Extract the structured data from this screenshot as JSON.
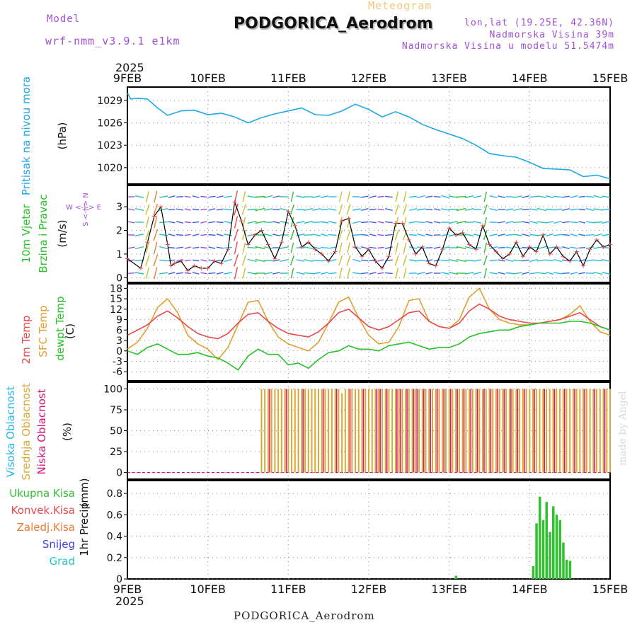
{
  "header": {
    "model_label": "Model",
    "model_name": "wrf-nmm_v3.9.1 e1km",
    "meteogram_label": "Meteogram",
    "station": "PODGORICA_Aerodrom",
    "coords": "lon,lat (19.25E, 42.36N)",
    "elevation": "Nadmorska Visina 39m",
    "model_elevation": "Nadmorska Visina u modelu 51.5474m",
    "year_top": "2025",
    "year_bottom": "2025",
    "footer_station": "PODGORICA_Aerodrom",
    "signature": "made by Angel"
  },
  "colors": {
    "pressure": "#1ea8e6",
    "temp2m": "#e84848",
    "sfc": "#e0a030",
    "dew": "#28c028",
    "high": "#28b8e8",
    "mid": "#d8a838",
    "low": "#d01878",
    "precip": "#30c030",
    "conv": "#e84848",
    "frz": "#f07830",
    "snow": "#4040e0",
    "grad": "#20c8c0",
    "purple": "#a050d8"
  },
  "chart_data": [
    {
      "type": "line",
      "id": "pressure",
      "ylabel": "Pritisak na nivou mora",
      "units": "(hPa)",
      "x_ticks": [
        "9FEB",
        "10FEB",
        "11FEB",
        "12FEB",
        "13FEB",
        "14FEB",
        "15FEB"
      ],
      "y_ticks": [
        1020,
        1023,
        1026,
        1029
      ],
      "ylim": [
        1017.8,
        1030.8
      ],
      "x_hours": [
        0,
        1,
        3,
        6,
        9,
        12,
        16,
        20,
        24,
        28,
        32,
        36,
        40,
        44,
        48,
        52,
        56,
        60,
        64,
        68,
        72,
        76,
        80,
        84,
        88,
        92,
        96,
        100,
        104,
        108,
        112,
        116,
        120,
        124,
        128,
        132,
        136,
        140,
        144
      ],
      "series": [
        {
          "values": [
            1030.0,
            1029.2,
            1029.3,
            1029.2,
            1028.0,
            1027.0,
            1027.6,
            1027.7,
            1027.1,
            1027.3,
            1026.8,
            1026.0,
            1026.7,
            1027.2,
            1027.6,
            1028.0,
            1027.1,
            1027.0,
            1027.6,
            1028.5,
            1027.8,
            1026.8,
            1027.5,
            1026.8,
            1025.8,
            1025.1,
            1024.5,
            1023.9,
            1023.0,
            1021.9,
            1021.6,
            1021.4,
            1020.7,
            1019.9,
            1019.8,
            1019.7,
            1018.8,
            1019.0,
            1018.5
          ]
        }
      ]
    },
    {
      "type": "line",
      "id": "wind",
      "ylabel": "10m Vjetar",
      "ylabel2": "Brzina i Pravac",
      "units": "(m/s)",
      "compass": "W <-|-> E",
      "compass2": "S <-|-> N",
      "y_ticks": [
        0,
        1,
        2,
        3
      ],
      "ylim": [
        -0.2,
        3.9
      ],
      "x_hours": [
        0,
        4,
        6,
        8,
        10,
        12,
        13,
        14,
        16,
        18,
        20,
        22,
        24,
        26,
        28,
        30,
        32,
        34,
        36,
        38,
        40,
        42,
        44,
        46,
        48,
        50,
        52,
        54,
        56,
        58,
        60,
        62,
        64,
        66,
        68,
        70,
        72,
        74,
        76,
        78,
        80,
        82,
        84,
        86,
        88,
        90,
        92,
        94,
        96,
        98,
        100,
        102,
        104,
        106,
        108,
        110,
        112,
        114,
        116,
        118,
        120,
        122,
        124,
        126,
        128,
        130,
        132,
        134,
        136,
        138,
        140,
        142,
        144
      ],
      "series": [
        {
          "name": "Brzina",
          "values": [
            0.8,
            0.4,
            1.5,
            2.6,
            3.0,
            1.4,
            0.5,
            0.6,
            0.7,
            0.3,
            0.5,
            0.4,
            0.4,
            0.7,
            0.6,
            1.2,
            3.2,
            2.4,
            1.4,
            1.8,
            2.0,
            1.4,
            0.8,
            1.5,
            2.8,
            2.2,
            1.3,
            1.5,
            1.2,
            1.0,
            0.7,
            1.1,
            2.4,
            2.5,
            1.3,
            0.9,
            1.2,
            0.7,
            0.4,
            0.9,
            2.3,
            2.3,
            1.6,
            1.0,
            1.3,
            0.6,
            0.5,
            1.2,
            2.1,
            1.8,
            1.9,
            1.4,
            1.2,
            2.2,
            1.4,
            1.1,
            0.8,
            1.0,
            1.5,
            0.9,
            1.3,
            1.1,
            1.8,
            1.0,
            1.3,
            0.9,
            0.7,
            1.1,
            0.5,
            1.2,
            1.6,
            1.3,
            1.4
          ]
        }
      ]
    },
    {
      "type": "line",
      "id": "temperature",
      "ylabel": "2m Temp",
      "ylabel2": "SFC Temp",
      "ylabel3": "dewpt Temp",
      "units": "(C)",
      "y_ticks": [
        -6,
        -3,
        0,
        3,
        6,
        9,
        12,
        15,
        18
      ],
      "ylim": [
        -8.6,
        19.3
      ],
      "x_hours": [
        0,
        3,
        6,
        9,
        12,
        15,
        18,
        21,
        24,
        27,
        30,
        33,
        36,
        39,
        42,
        45,
        48,
        51,
        54,
        57,
        60,
        63,
        66,
        69,
        72,
        75,
        78,
        81,
        84,
        87,
        90,
        93,
        96,
        99,
        102,
        105,
        108,
        111,
        114,
        117,
        120,
        123,
        126,
        129,
        132,
        135,
        138,
        141,
        144
      ],
      "series": [
        {
          "name": "2m Temp",
          "values": [
            4.5,
            6.0,
            7.5,
            10.0,
            11.5,
            9.5,
            7.0,
            5.0,
            4.0,
            3.5,
            5.0,
            8.0,
            10.5,
            11.0,
            8.5,
            6.5,
            5.0,
            4.5,
            4.0,
            5.5,
            8.0,
            11.0,
            12.0,
            9.5,
            7.0,
            6.0,
            7.0,
            9.0,
            11.0,
            11.5,
            8.5,
            7.0,
            6.5,
            8.0,
            11.5,
            13.5,
            12.0,
            10.0,
            9.0,
            8.5,
            8.0,
            8.0,
            8.5,
            9.0,
            10.0,
            11.0,
            9.0,
            7.0,
            6.0
          ]
        },
        {
          "name": "SFC Temp",
          "values": [
            0.5,
            2.5,
            6.5,
            12.5,
            15.0,
            11.0,
            4.5,
            2.0,
            0.5,
            -2.5,
            1.0,
            7.5,
            14.0,
            14.5,
            8.5,
            4.0,
            2.0,
            1.0,
            0.0,
            2.5,
            8.0,
            14.0,
            15.5,
            9.5,
            4.5,
            2.0,
            2.5,
            7.0,
            14.5,
            15.0,
            8.5,
            7.0,
            6.5,
            9.0,
            15.5,
            18.0,
            12.0,
            9.0,
            8.0,
            7.5,
            7.5,
            8.0,
            8.5,
            9.0,
            10.5,
            13.0,
            8.5,
            5.5,
            4.5
          ]
        },
        {
          "name": "dewpt Temp",
          "values": [
            0.0,
            -1.0,
            1.0,
            2.0,
            0.5,
            -1.0,
            -1.0,
            -0.5,
            -1.5,
            -2.0,
            -3.5,
            -5.5,
            -1.5,
            0.5,
            -1.0,
            -1.0,
            -4.0,
            -3.5,
            -5.0,
            -2.5,
            -0.5,
            0.0,
            1.5,
            0.5,
            0.5,
            0.0,
            1.5,
            2.0,
            2.5,
            1.5,
            0.5,
            1.0,
            1.0,
            2.0,
            4.0,
            5.0,
            5.5,
            6.0,
            6.0,
            7.0,
            7.5,
            8.0,
            8.0,
            8.0,
            8.5,
            8.5,
            8.0,
            7.0,
            6.0
          ]
        }
      ]
    },
    {
      "type": "bar",
      "id": "clouds",
      "ylabel": "Visoka Oblacnost",
      "ylabel2": "Srednja Oblacnost",
      "ylabel3": "Niska Oblacnost",
      "units": "(%)",
      "y_ticks": [
        0,
        25,
        50,
        75,
        100
      ],
      "ylim": [
        -8,
        108
      ],
      "series": [
        {
          "name": "Visoka Oblacnost",
          "values_note": "0 through whole period"
        },
        {
          "name": "Srednja Oblacnost",
          "x_hours": [
            40,
            41,
            42,
            43,
            44,
            45,
            46,
            47,
            48,
            49,
            50,
            51,
            52,
            53,
            54,
            55,
            56,
            57,
            58,
            59,
            60,
            61,
            62,
            63,
            64,
            65,
            66,
            67,
            68,
            69,
            70,
            71,
            72,
            73,
            74,
            75,
            76,
            77,
            78,
            79,
            80,
            81,
            82,
            83,
            84,
            85,
            86,
            87,
            88,
            89,
            90,
            91,
            92,
            93,
            94,
            95,
            96,
            97,
            98,
            99,
            100,
            101,
            102,
            103,
            104,
            105,
            106,
            107,
            108,
            109,
            110,
            111,
            112,
            113,
            114,
            115,
            116,
            117,
            118,
            119,
            120,
            121,
            122,
            123,
            124,
            125,
            126,
            127,
            128,
            129,
            130,
            131,
            132,
            133,
            134,
            135,
            136,
            137,
            138,
            139,
            140,
            141,
            142,
            143,
            144
          ],
          "values": [
            100,
            100,
            100,
            100,
            100,
            100,
            100,
            100,
            100,
            100,
            100,
            100,
            100,
            100,
            100,
            100,
            100,
            100,
            100,
            100,
            100,
            100,
            100,
            100,
            95,
            100,
            100,
            100,
            100,
            100,
            100,
            100,
            100,
            100,
            100,
            100,
            100,
            100,
            100,
            100,
            100,
            100,
            100,
            100,
            100,
            100,
            100,
            100,
            100,
            100,
            100,
            100,
            100,
            100,
            100,
            100,
            100,
            100,
            100,
            100,
            100,
            100,
            100,
            100,
            100,
            100,
            100,
            100,
            100,
            100,
            100,
            100,
            100,
            100,
            100,
            100,
            100,
            100,
            100,
            100,
            100,
            100,
            100,
            100,
            100,
            100,
            100,
            100,
            100,
            100,
            100,
            100,
            100,
            100,
            100,
            100,
            100,
            100,
            100,
            100,
            100,
            100,
            100,
            100,
            100
          ]
        },
        {
          "name": "Niska Oblacnost",
          "x_hours": [
            42,
            47,
            52,
            58,
            62,
            66,
            70,
            74,
            75,
            77,
            80,
            81,
            83,
            85,
            86,
            88,
            90,
            92,
            94,
            96,
            98,
            100,
            102,
            104,
            106,
            108,
            110,
            112,
            114,
            116,
            118,
            121,
            124,
            127,
            130,
            133,
            136,
            139,
            142
          ],
          "values": [
            100,
            100,
            100,
            100,
            100,
            100,
            100,
            100,
            100,
            100,
            100,
            100,
            100,
            100,
            100,
            100,
            100,
            100,
            100,
            100,
            100,
            100,
            100,
            100,
            100,
            100,
            100,
            100,
            100,
            100,
            100,
            100,
            100,
            100,
            100,
            100,
            100,
            100,
            100
          ]
        }
      ]
    },
    {
      "type": "bar",
      "id": "precip",
      "ylabel": "1hr Precip",
      "units": "(mm)",
      "legend": [
        "Ukupna Kisa",
        "Konvek.Kisa",
        "Zaledj.Kisa",
        "Snijeg",
        "Grad"
      ],
      "y_ticks": [
        0,
        0.2,
        0.4,
        0.6,
        0.8
      ],
      "ylim": [
        0,
        0.92
      ],
      "x_hours": [
        98,
        121,
        122,
        123,
        124,
        125,
        126,
        127,
        128,
        129,
        130,
        131,
        132
      ],
      "values": [
        0.03,
        0.12,
        0.52,
        0.77,
        0.55,
        0.72,
        0.44,
        0.68,
        0.6,
        0.55,
        0.34,
        0.18,
        0.17
      ]
    }
  ]
}
